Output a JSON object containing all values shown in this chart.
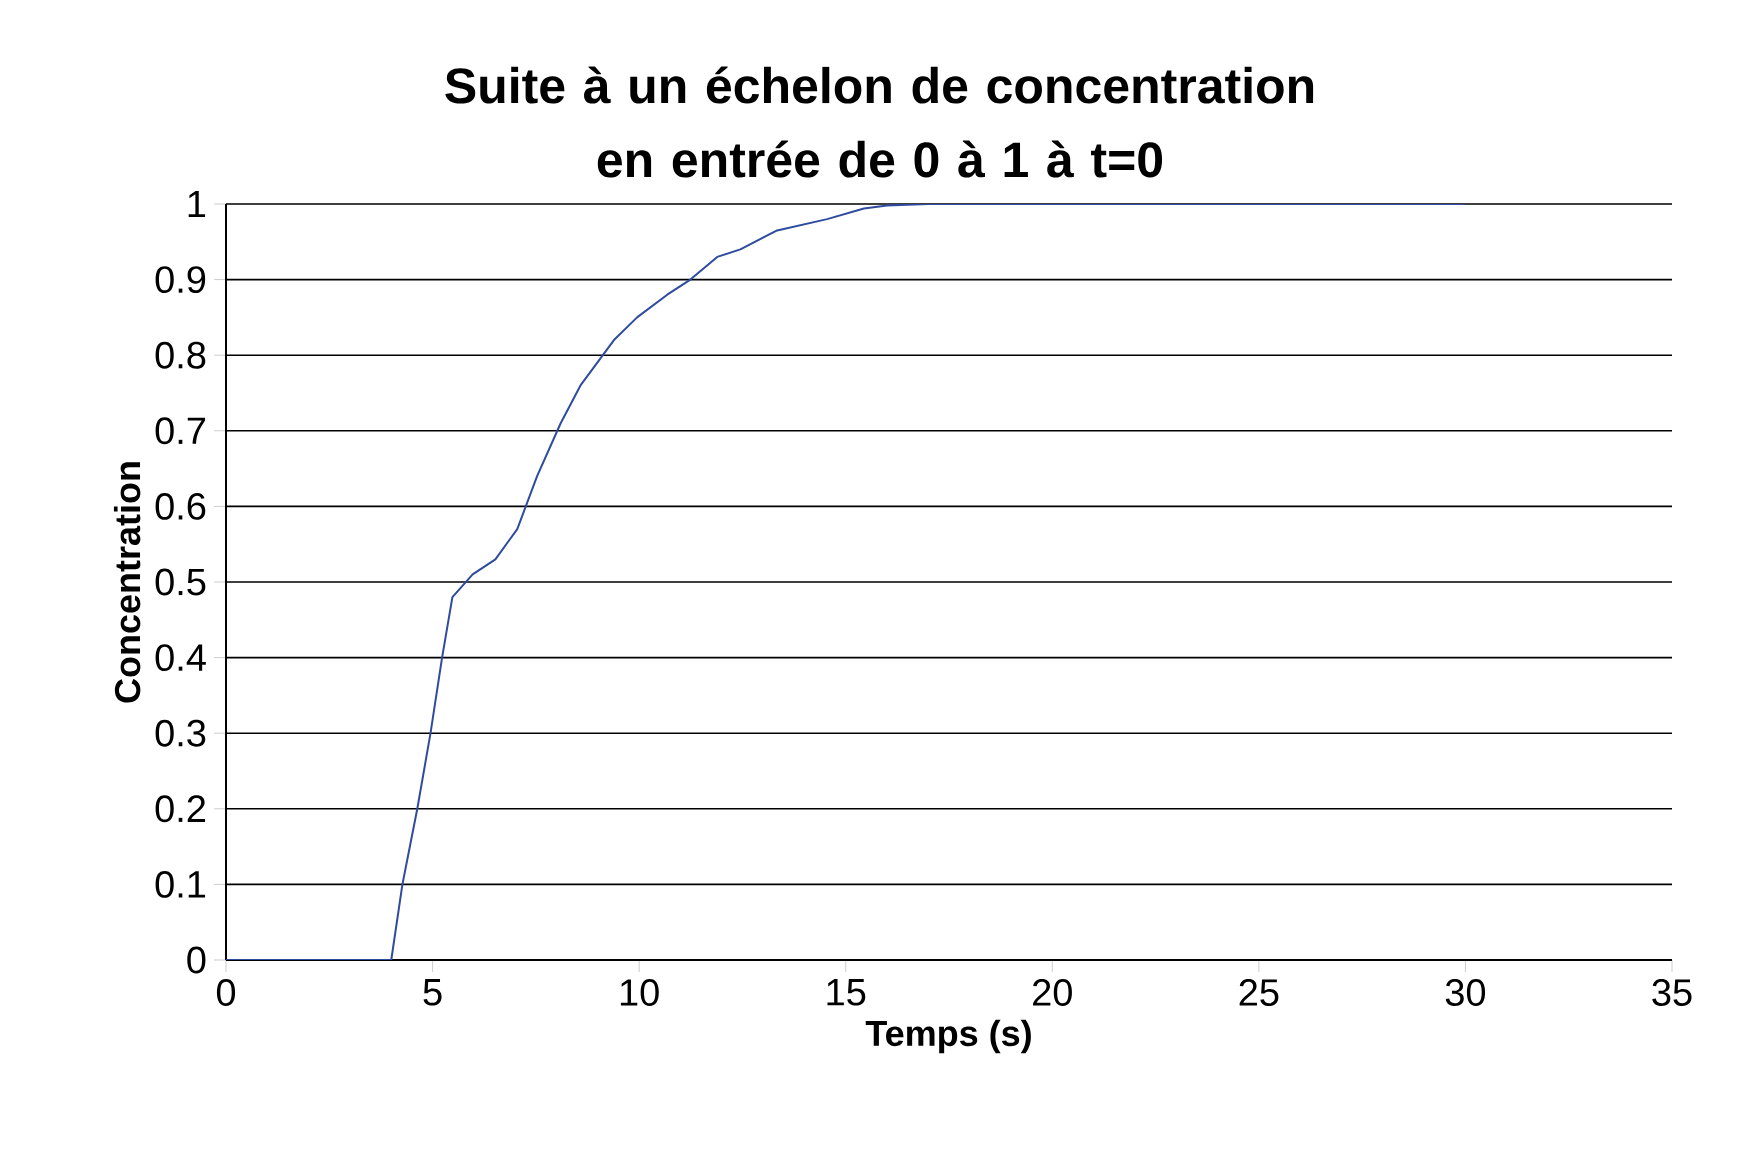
{
  "chart_data": {
    "type": "line",
    "title": "Suite à un échelon de concentration en entrée de 0 à 1 à t=0",
    "xlabel": "Temps (s)",
    "ylabel": "Concentration",
    "series": [
      {
        "color": "#2e4b9e",
        "x": [
          0,
          4.0,
          4.27,
          4.63,
          4.95,
          5.23,
          5.48,
          5.97,
          6.52,
          7.05,
          7.53,
          8.1,
          8.58,
          9.39,
          9.95,
          10.68,
          11.24,
          11.89,
          12.45,
          13.34,
          14.55,
          15.44,
          16.0,
          17,
          20,
          25,
          30
        ],
        "values": [
          0,
          0,
          0.1,
          0.2,
          0.3,
          0.4,
          0.48,
          0.51,
          0.53,
          0.57,
          0.64,
          0.71,
          0.76,
          0.82,
          0.85,
          0.88,
          0.9,
          0.93,
          0.94,
          0.965,
          0.98,
          0.994,
          0.998,
          1,
          1,
          1,
          1
        ]
      }
    ],
    "xlim": [
      0,
      35
    ],
    "xticks": [
      0,
      5,
      10,
      15,
      20,
      25,
      30,
      35
    ],
    "ylim": [
      0,
      1
    ],
    "yticks": [
      0,
      0.1,
      0.2,
      0.3,
      0.4,
      0.5,
      0.6,
      0.7,
      0.8,
      0.9,
      1
    ],
    "grid": "y",
    "marker": "none",
    "line_style": "solid"
  }
}
